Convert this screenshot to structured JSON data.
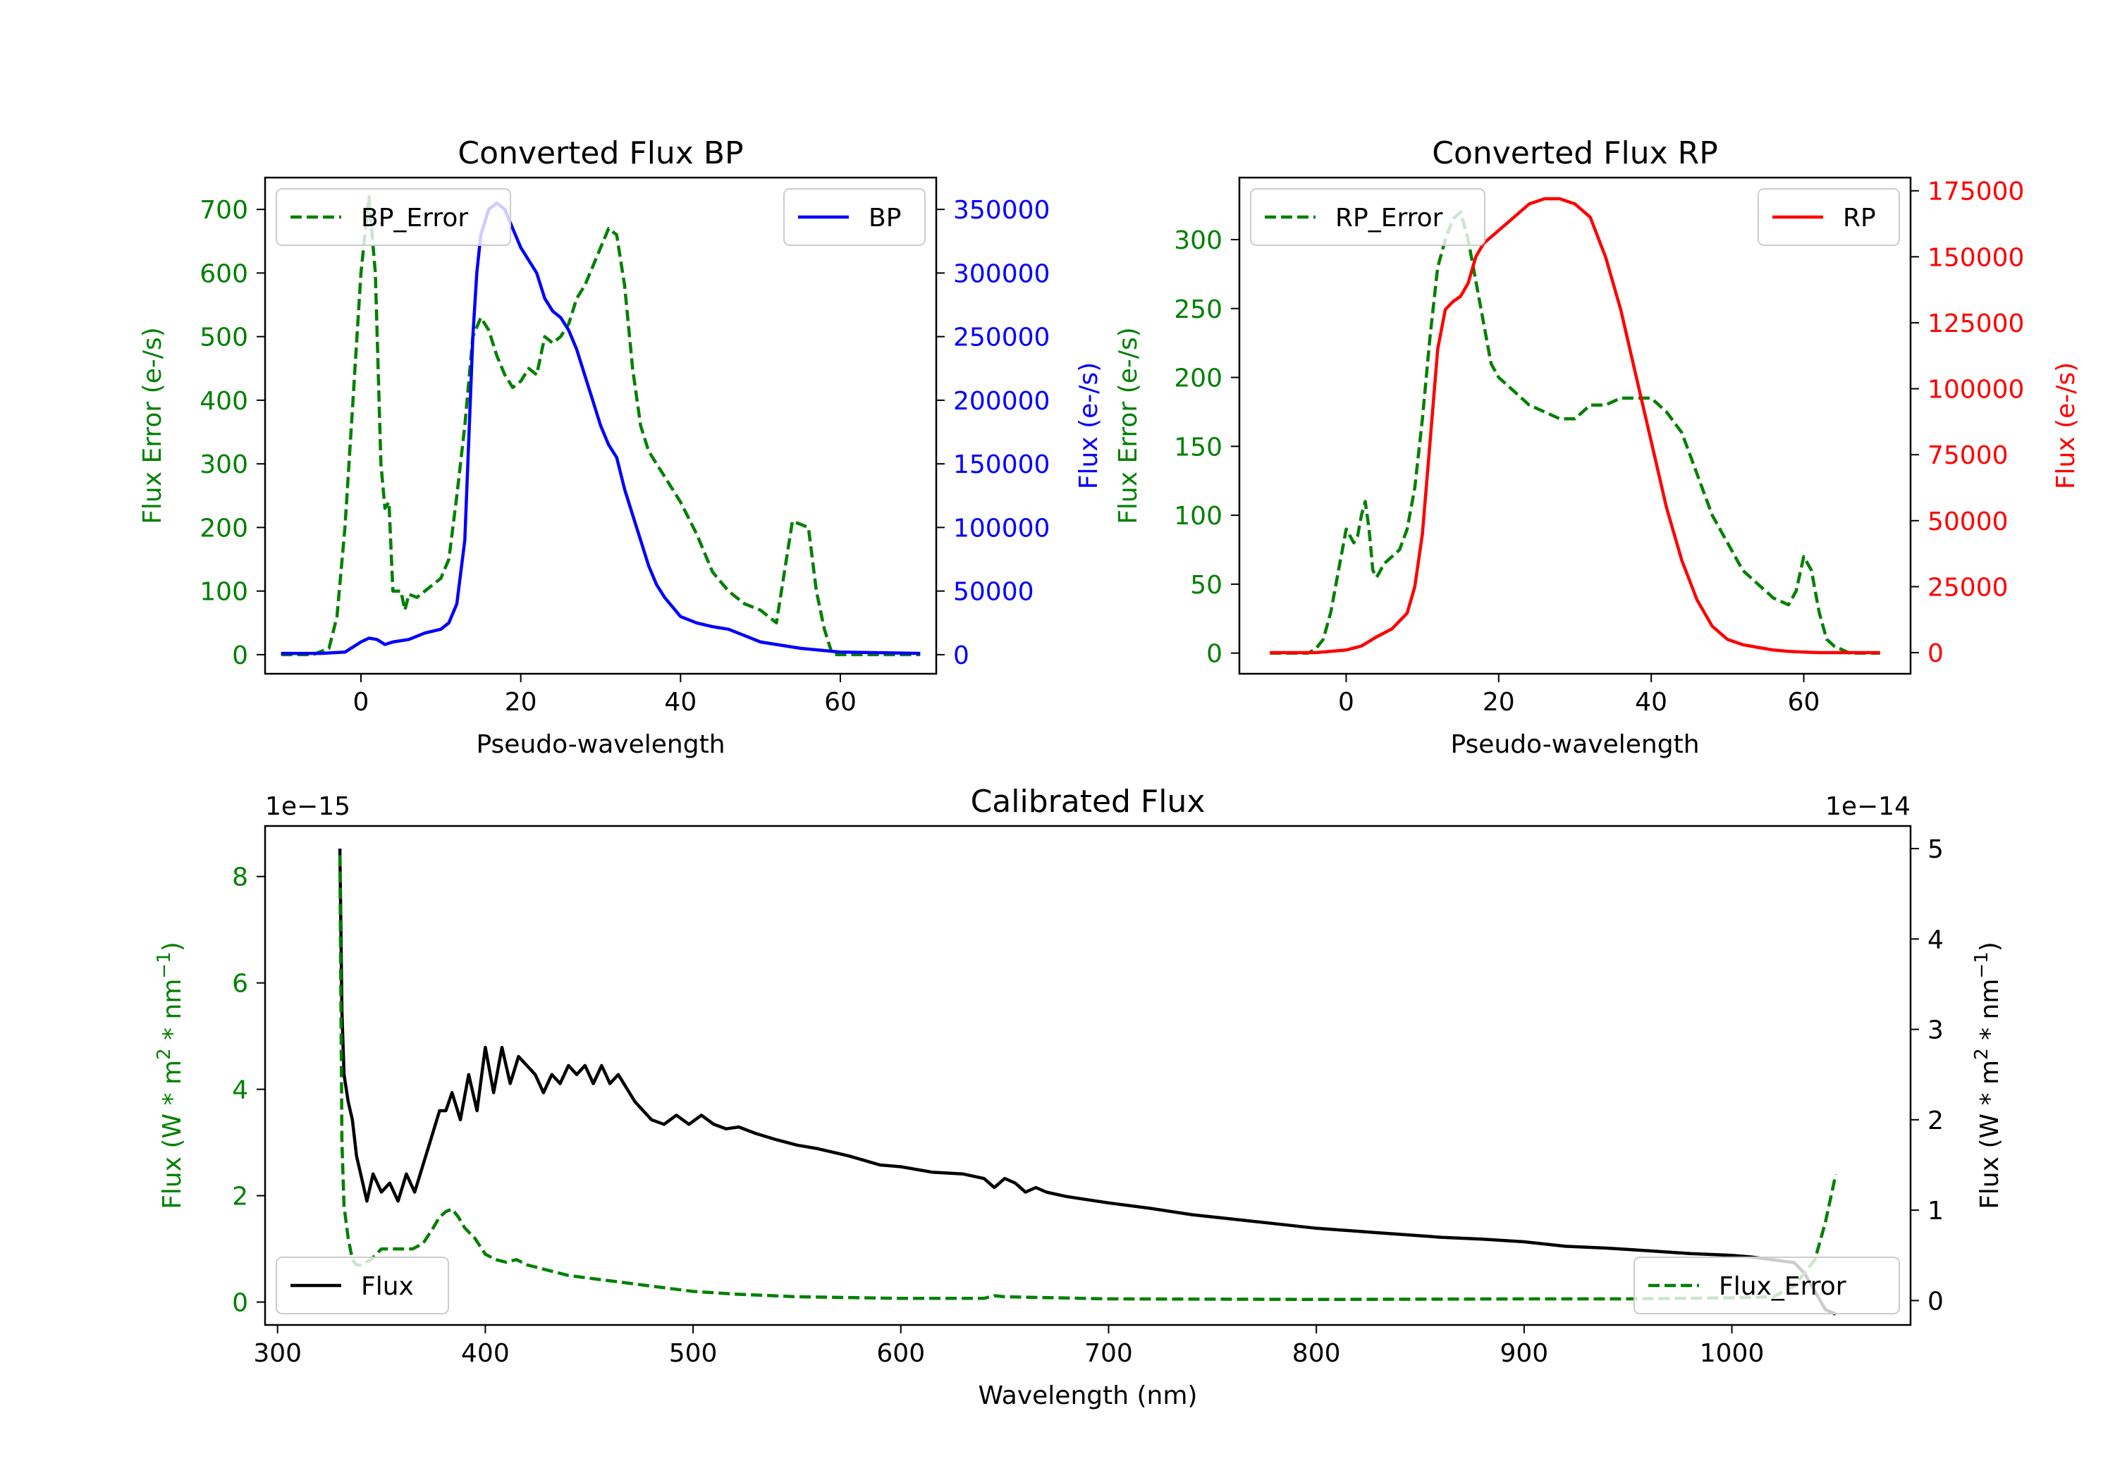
{
  "chart_data": [
    {
      "id": "bp",
      "type": "line",
      "title": "Converted Flux BP",
      "xlabel": "Pseudo-wavelength",
      "ylabel_left": "Flux Error (e-/s)",
      "ylabel_right": "Flux (e-/s)",
      "left_color": "#008000",
      "right_color": "#0000ff",
      "xlim": [
        -12,
        72
      ],
      "ylim_left": [
        -30,
        750
      ],
      "ylim_right": [
        -15000,
        375000
      ],
      "xticks": [
        0,
        20,
        40,
        60
      ],
      "yticks_left": [
        0,
        100,
        200,
        300,
        400,
        500,
        600,
        700
      ],
      "yticks_right": [
        0,
        50000,
        100000,
        150000,
        200000,
        250000,
        300000,
        350000
      ],
      "legend_left": {
        "label": "BP_Error",
        "position": "upper left"
      },
      "legend_right": {
        "label": "BP",
        "position": "upper right"
      },
      "series": [
        {
          "name": "BP_Error",
          "axis": "left",
          "color": "#008000",
          "dash": true,
          "x": [
            -10,
            -6,
            -4,
            -3,
            -2,
            -1,
            0,
            1,
            1.8,
            2.5,
            3,
            3.5,
            4,
            5,
            5.5,
            6,
            7,
            8,
            9,
            10,
            11,
            12,
            13,
            14,
            15,
            16,
            17,
            18,
            19,
            20,
            21,
            22,
            23,
            24,
            25,
            26,
            27,
            28,
            29,
            30,
            31,
            32,
            33,
            34,
            35,
            36,
            37,
            38,
            40,
            42,
            44,
            46,
            48,
            50,
            52,
            54,
            56,
            57,
            58,
            59,
            60,
            61,
            62,
            63,
            64,
            66,
            70
          ],
          "y": [
            0,
            0,
            10,
            60,
            200,
            400,
            600,
            720,
            600,
            300,
            230,
            240,
            100,
            100,
            70,
            95,
            90,
            100,
            110,
            120,
            150,
            250,
            360,
            500,
            530,
            510,
            470,
            440,
            420,
            430,
            450,
            440,
            500,
            490,
            500,
            520,
            560,
            580,
            610,
            640,
            670,
            660,
            580,
            450,
            360,
            320,
            300,
            280,
            240,
            190,
            130,
            100,
            80,
            70,
            50,
            210,
            200,
            100,
            40,
            0,
            0,
            0,
            0,
            0,
            0,
            0,
            0
          ]
        },
        {
          "name": "BP",
          "axis": "right",
          "color": "#0000ff",
          "dash": false,
          "x": [
            -10,
            -5,
            -2,
            0,
            1,
            2,
            3,
            4,
            6,
            8,
            10,
            11,
            12,
            13,
            13.5,
            14,
            14.5,
            15,
            16,
            17,
            18,
            19,
            20,
            21,
            22,
            23,
            24,
            25,
            26,
            27,
            28,
            29,
            30,
            31,
            32,
            33,
            34,
            35,
            36,
            37,
            38,
            40,
            42,
            44,
            46,
            48,
            50,
            55,
            60,
            70
          ],
          "y": [
            1000,
            1000,
            2000,
            10000,
            13000,
            12000,
            8000,
            10000,
            12000,
            17000,
            20000,
            25000,
            40000,
            90000,
            170000,
            250000,
            300000,
            330000,
            350000,
            355000,
            350000,
            335000,
            320000,
            310000,
            300000,
            280000,
            270000,
            265000,
            255000,
            240000,
            220000,
            200000,
            180000,
            165000,
            155000,
            130000,
            110000,
            90000,
            70000,
            55000,
            45000,
            30000,
            25000,
            22000,
            20000,
            15000,
            10000,
            5000,
            2000,
            1000
          ]
        }
      ]
    },
    {
      "id": "rp",
      "type": "line",
      "title": "Converted Flux RP",
      "xlabel": "Pseudo-wavelength",
      "ylabel_left": "Flux Error (e-/s)",
      "ylabel_right": "Flux (e-/s)",
      "left_color": "#008000",
      "right_color": "#ff0000",
      "xlim": [
        -14,
        74
      ],
      "ylim_left": [
        -15,
        345
      ],
      "ylim_right": [
        -8000,
        180000
      ],
      "xticks": [
        0,
        20,
        40,
        60
      ],
      "yticks_left": [
        0,
        50,
        100,
        150,
        200,
        250,
        300
      ],
      "yticks_right": [
        0,
        25000,
        50000,
        75000,
        100000,
        125000,
        150000,
        175000
      ],
      "legend_left": {
        "label": "RP_Error",
        "position": "upper left"
      },
      "legend_right": {
        "label": "RP",
        "position": "upper right"
      },
      "series": [
        {
          "name": "RP_Error",
          "axis": "left",
          "color": "#008000",
          "dash": true,
          "x": [
            -10,
            -5,
            -4,
            -3,
            -2,
            -1,
            0,
            1,
            1.5,
            2,
            2.5,
            3,
            3.5,
            4,
            5,
            6,
            7,
            8,
            9,
            10,
            11,
            12,
            13,
            14,
            15,
            16,
            17,
            18,
            19,
            20,
            22,
            24,
            26,
            28,
            30,
            32,
            34,
            36,
            38,
            40,
            42,
            44,
            46,
            48,
            50,
            52,
            54,
            56,
            58,
            59,
            60,
            61,
            62,
            63,
            64,
            66,
            70
          ],
          "y": [
            0,
            0,
            3,
            10,
            30,
            60,
            90,
            80,
            85,
            100,
            110,
            90,
            60,
            55,
            65,
            70,
            75,
            90,
            120,
            170,
            230,
            280,
            300,
            315,
            320,
            300,
            270,
            240,
            210,
            200,
            190,
            180,
            175,
            170,
            170,
            180,
            180,
            185,
            185,
            185,
            175,
            160,
            130,
            100,
            80,
            60,
            50,
            40,
            35,
            45,
            70,
            60,
            30,
            10,
            5,
            0,
            0
          ]
        },
        {
          "name": "RP",
          "axis": "right",
          "color": "#ff0000",
          "dash": false,
          "x": [
            -10,
            -4,
            0,
            2,
            4,
            6,
            8,
            9,
            10,
            11,
            12,
            13,
            14,
            15,
            16,
            17,
            18,
            20,
            22,
            24,
            26,
            28,
            30,
            32,
            34,
            36,
            38,
            40,
            42,
            44,
            46,
            48,
            50,
            52,
            54,
            56,
            58,
            60,
            62,
            64,
            70
          ],
          "y": [
            0,
            0,
            1000,
            2500,
            6000,
            9000,
            15000,
            25000,
            45000,
            80000,
            115000,
            130000,
            133000,
            135000,
            140000,
            150000,
            155000,
            160000,
            165000,
            170000,
            172000,
            172000,
            170000,
            165000,
            150000,
            130000,
            105000,
            80000,
            55000,
            35000,
            20000,
            10000,
            5000,
            3000,
            2000,
            1000,
            500,
            200,
            0,
            0,
            0
          ]
        }
      ]
    },
    {
      "id": "cal",
      "type": "line",
      "title": "Calibrated Flux",
      "xlabel": "Wavelength (nm)",
      "ylabel_left_parts": [
        "Flux (W * m",
        "2",
        " * nm",
        "−1",
        ")"
      ],
      "ylabel_right_parts": [
        "Flux (W * m",
        "2",
        " * nm",
        "−1",
        ")"
      ],
      "left_color": "#008000",
      "right_color": "#000000",
      "offset_left": "1e−15",
      "offset_right": "1e−14",
      "xlim": [
        294,
        1086
      ],
      "ylim_left": [
        -0.43,
        8.95
      ],
      "ylim_right": [
        -0.27,
        5.25
      ],
      "xticks": [
        300,
        400,
        500,
        600,
        700,
        800,
        900,
        1000
      ],
      "yticks_left": [
        0,
        2,
        4,
        6,
        8
      ],
      "yticks_right": [
        0,
        1,
        2,
        3,
        4,
        5
      ],
      "legend_left": {
        "label": "Flux",
        "position": "lower left"
      },
      "legend_right": {
        "label": "Flux_Error",
        "position": "lower right"
      },
      "series": [
        {
          "name": "Flux",
          "axis": "right",
          "color": "#000000",
          "dash": false,
          "x": [
            330,
            331,
            332,
            334,
            336,
            338,
            340,
            343,
            346,
            350,
            354,
            358,
            362,
            366,
            370,
            374,
            378,
            381,
            384,
            388,
            392,
            396,
            400,
            404,
            408,
            412,
            416,
            420,
            424,
            428,
            432,
            436,
            440,
            444,
            448,
            452,
            456,
            460,
            464,
            468,
            472,
            476,
            480,
            486,
            492,
            498,
            504,
            510,
            516,
            522,
            530,
            540,
            550,
            560,
            575,
            590,
            600,
            615,
            630,
            640,
            645,
            650,
            655,
            660,
            665,
            670,
            680,
            700,
            720,
            740,
            760,
            780,
            800,
            830,
            860,
            880,
            900,
            920,
            940,
            960,
            980,
            1000,
            1010,
            1020,
            1030,
            1035,
            1040,
            1045,
            1050
          ],
          "y": [
            5.0,
            3.2,
            2.5,
            2.2,
            2.0,
            1.6,
            1.4,
            1.1,
            1.4,
            1.2,
            1.3,
            1.1,
            1.4,
            1.2,
            1.5,
            1.8,
            2.1,
            2.1,
            2.3,
            2.0,
            2.5,
            2.1,
            2.8,
            2.3,
            2.8,
            2.4,
            2.7,
            2.6,
            2.5,
            2.3,
            2.5,
            2.4,
            2.6,
            2.5,
            2.6,
            2.4,
            2.6,
            2.4,
            2.5,
            2.35,
            2.2,
            2.1,
            2.0,
            1.95,
            2.05,
            1.95,
            2.05,
            1.95,
            1.9,
            1.92,
            1.85,
            1.78,
            1.72,
            1.68,
            1.6,
            1.5,
            1.48,
            1.42,
            1.4,
            1.35,
            1.25,
            1.35,
            1.3,
            1.2,
            1.25,
            1.2,
            1.15,
            1.08,
            1.02,
            0.95,
            0.9,
            0.85,
            0.8,
            0.75,
            0.7,
            0.68,
            0.65,
            0.6,
            0.58,
            0.55,
            0.52,
            0.5,
            0.48,
            0.45,
            0.42,
            0.3,
            0.1,
            -0.1,
            -0.15
          ]
        },
        {
          "name": "Flux_Error",
          "axis": "left",
          "color": "#008000",
          "dash": true,
          "x": [
            330,
            331,
            332,
            334,
            336,
            338,
            340,
            345,
            350,
            355,
            360,
            365,
            370,
            375,
            378,
            381,
            384,
            387,
            390,
            395,
            400,
            405,
            410,
            415,
            420,
            425,
            430,
            440,
            450,
            460,
            470,
            480,
            490,
            500,
            520,
            550,
            600,
            640,
            645,
            650,
            700,
            800,
            900,
            950,
            1000,
            1020,
            1030,
            1040,
            1045,
            1050
          ],
          "y": [
            8.4,
            3.0,
            1.8,
            1.2,
            0.8,
            0.7,
            0.7,
            0.8,
            1.0,
            1.0,
            1.0,
            1.0,
            1.1,
            1.4,
            1.6,
            1.7,
            1.75,
            1.6,
            1.4,
            1.2,
            0.9,
            0.8,
            0.75,
            0.8,
            0.7,
            0.65,
            0.6,
            0.5,
            0.45,
            0.4,
            0.35,
            0.3,
            0.25,
            0.2,
            0.15,
            0.1,
            0.07,
            0.07,
            0.12,
            0.1,
            0.06,
            0.05,
            0.06,
            0.06,
            0.08,
            0.1,
            0.3,
            0.8,
            1.5,
            2.4
          ]
        }
      ]
    }
  ]
}
